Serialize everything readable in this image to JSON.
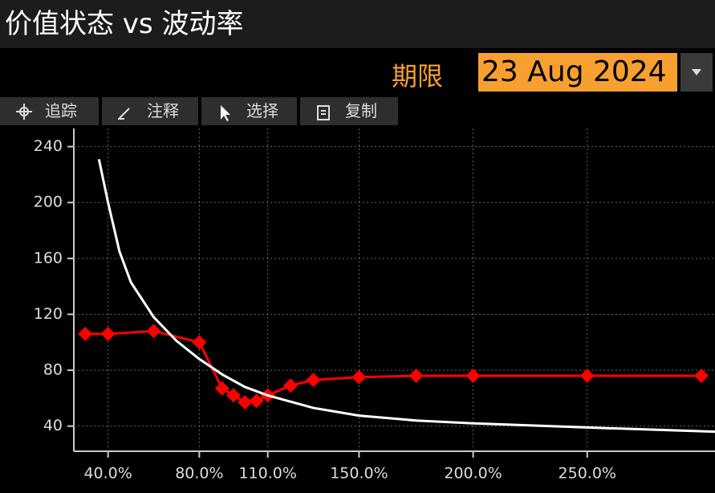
{
  "header": {
    "title": "价值状态 vs 波动率"
  },
  "expiry": {
    "label": "期限",
    "value": "23 Aug 2024"
  },
  "toolbar": {
    "buttons": [
      "追踪",
      "注释",
      "选择",
      "复制"
    ]
  },
  "chart_data": {
    "type": "line",
    "series": [
      {
        "color": "#ff0000",
        "marker": "diamond",
        "x": [
          30,
          40,
          60,
          80,
          90,
          95,
          100,
          105,
          110,
          120,
          130,
          150,
          175,
          200,
          250,
          300
        ],
        "values": [
          106,
          106,
          108,
          100,
          67,
          62,
          57,
          58,
          62,
          69,
          73,
          75,
          76,
          76,
          76,
          76
        ]
      },
      {
        "color": "#ffffff",
        "x": [
          36,
          40,
          45,
          50,
          60,
          70,
          80,
          90,
          100,
          110,
          130,
          150,
          175,
          200,
          250,
          306
        ],
        "values": [
          231,
          200,
          165,
          143,
          118,
          101,
          88,
          77,
          68,
          62,
          53,
          47.5,
          44,
          42,
          39,
          36
        ]
      }
    ],
    "xlim": [
      25,
      306
    ],
    "ylim": [
      22,
      253
    ],
    "xticks": [
      {
        "value": 40,
        "label": "40.0%"
      },
      {
        "value": 80,
        "label": "80.0%"
      },
      {
        "value": 110,
        "label": "110.0%"
      },
      {
        "value": 150,
        "label": "150.0%"
      },
      {
        "value": 200,
        "label": "200.0%"
      },
      {
        "value": 250,
        "label": "250.0%"
      }
    ],
    "yticks": [
      40,
      80,
      120,
      160,
      200,
      240
    ],
    "grid": true
  }
}
